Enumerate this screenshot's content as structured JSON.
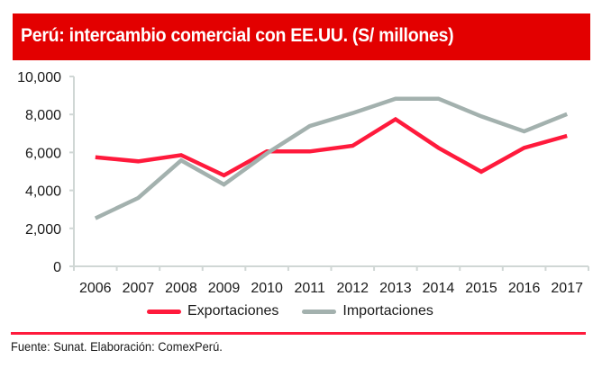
{
  "header": {
    "title": "Perú: intercambio comercial con EE.UU. (S/ millones)"
  },
  "chart_data": {
    "type": "line",
    "title": "Perú: intercambio comercial con EE.UU. (S/ millones)",
    "xlabel": "",
    "ylabel": "",
    "categories": [
      "2006",
      "2007",
      "2008",
      "2009",
      "2010",
      "2011",
      "2012",
      "2013",
      "2014",
      "2015",
      "2016",
      "2017"
    ],
    "ylim": [
      0,
      10000
    ],
    "yticks": [
      0,
      2000,
      4000,
      6000,
      8000,
      10000
    ],
    "ytick_labels": [
      "0",
      "2,000",
      "4,000",
      "6,000",
      "8,000",
      "10,000"
    ],
    "grid": false,
    "legend_position": "bottom",
    "series": [
      {
        "name": "Exportaciones",
        "color": "#ff1a3c",
        "values": [
          5750,
          5530,
          5860,
          4790,
          6050,
          6050,
          6350,
          7750,
          6240,
          4980,
          6240,
          6870
        ]
      },
      {
        "name": "Importaciones",
        "color": "#a3b1ae",
        "values": [
          2530,
          3600,
          5580,
          4310,
          5950,
          7390,
          8070,
          8830,
          8830,
          7900,
          7110,
          8020
        ]
      }
    ]
  },
  "colors": {
    "banner": "#e30000",
    "axis": "#d0d7d5",
    "rule": "#ff1a3c"
  },
  "footer": {
    "source": "Fuente: Sunat. Elaboración: ComexPerú."
  }
}
